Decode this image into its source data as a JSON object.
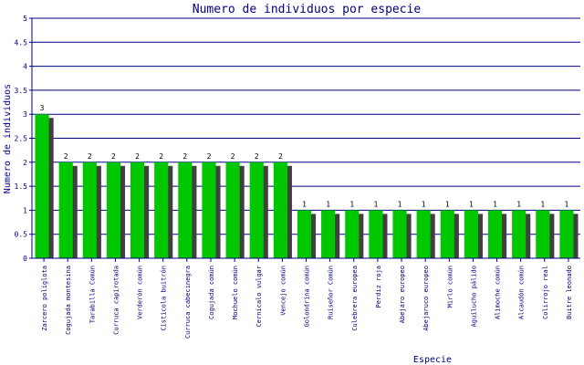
{
  "chart_data": {
    "type": "bar",
    "title": "Numero de individuos por especie",
    "xlabel": "Especie",
    "ylabel": "Numero de individuos",
    "ylim": [
      0,
      5
    ],
    "yticks": [
      "0",
      "0.5",
      "1",
      "1.5",
      "2",
      "2.5",
      "3",
      "3.5",
      "4",
      "4.5",
      "5"
    ],
    "grid": true,
    "bar_color": "#00c800",
    "shadow_color": "#404040",
    "axis_color": "#000080",
    "categories": [
      "Zarcero políglota",
      "Cogujada montesina",
      "Tarabilla Común",
      "Curruca capirotada",
      "Verderón común",
      "Cisticola buitrón",
      "Curruca cabecinegra",
      "Cogujada común",
      "Mochuelo común",
      "Cernícalo vulgar",
      "Vencejo común",
      "Golondrina común",
      "Ruiseñor Común",
      "Culebrera europea",
      "Perdiz roja",
      "Abejaro europeo",
      "Abejaruco europeo",
      "Mirlo común",
      "Aguilucho pálido",
      "Alimoche común",
      "Alcaudón común",
      "Colirrojo real",
      "Buitre leonado"
    ],
    "values": [
      3,
      2,
      2,
      2,
      2,
      2,
      2,
      2,
      2,
      2,
      2,
      1,
      1,
      1,
      1,
      1,
      1,
      1,
      1,
      1,
      1,
      1,
      1
    ],
    "data_labels": [
      "3",
      "2",
      "2",
      "2",
      "2",
      "2",
      "2",
      "2",
      "2",
      "2",
      "2",
      "1",
      "1",
      "1",
      "1",
      "1",
      "1",
      "1",
      "1",
      "1",
      "1",
      "1",
      "1"
    ]
  }
}
